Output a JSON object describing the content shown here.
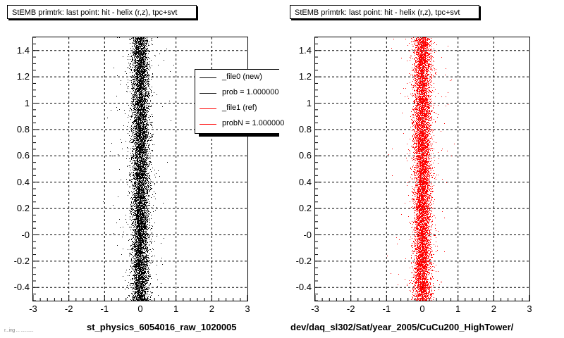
{
  "colors": {
    "background": "#ffffff",
    "series_new": "#000000",
    "series_ref": "#ff0000",
    "grid": "#000000"
  },
  "panels": [
    {
      "title": "StEMB primtrk: last point: hit - helix (r,z), tpc+svt",
      "xlabel": "st_physics_6054016_raw_1020005"
    },
    {
      "title": "StEMB primtrk: last point: hit - helix (r,z), tpc+svt",
      "xlabel": "dev/daq_sl302/Sat/year_2005/CuCu200_HighTower/"
    }
  ],
  "legend": {
    "entries": [
      {
        "label": "_file0 (new)",
        "color": "#000000"
      },
      {
        "label": "prob = 1.000000",
        "color": "#000000"
      },
      {
        "label": "_file1 (ref)",
        "color": "#ff0000"
      },
      {
        "label": "probN = 1.000000",
        "color": "#ff0000"
      }
    ]
  },
  "footer_text": "r...ing ... ...........",
  "chart_data": [
    {
      "type": "scatter",
      "title": "StEMB primtrk: last point: hit - helix (r,z), tpc+svt",
      "xlabel": "st_physics_6054016_raw_1020005",
      "ylabel": "",
      "xlim": [
        -3,
        3
      ],
      "ylim": [
        -0.5,
        1.5
      ],
      "xticks": [
        -3,
        -2,
        -1,
        0,
        1,
        2,
        3
      ],
      "ytick_values": [
        -0.4,
        -0.2,
        0,
        0.2,
        0.4,
        0.6,
        0.8,
        1,
        1.2,
        1.4
      ],
      "ytick_labels": [
        "-0.4",
        "-0.2",
        "-0",
        "0.2",
        "0.4",
        "0.6",
        "0.8",
        "1",
        "1.2",
        "1.4"
      ],
      "grid": true,
      "legend_position": "top-right",
      "series": [
        {
          "name": "_file0 (new)",
          "color": "#000000",
          "center_x": 0.0,
          "x_spread": 0.12,
          "point_count": 9000
        }
      ]
    },
    {
      "type": "scatter",
      "title": "StEMB primtrk: last point: hit - helix (r,z), tpc+svt",
      "xlabel": "dev/daq_sl302/Sat/year_2005/CuCu200_HighTower/",
      "ylabel": "",
      "xlim": [
        -3,
        3
      ],
      "ylim": [
        -0.5,
        1.5
      ],
      "xticks": [
        -3,
        -2,
        -1,
        0,
        1,
        2,
        3
      ],
      "ytick_values": [
        -0.4,
        -0.2,
        0,
        0.2,
        0.4,
        0.6,
        0.8,
        1,
        1.2,
        1.4
      ],
      "ytick_labels": [
        "-0.4",
        "-0.2",
        "-0",
        "0.2",
        "0.4",
        "0.6",
        "0.8",
        "1",
        "1.2",
        "1.4"
      ],
      "grid": true,
      "legend_position": "",
      "series": [
        {
          "name": "_file1 (ref)",
          "color": "#ff0000",
          "center_x": 0.0,
          "x_spread": 0.12,
          "point_count": 9000
        }
      ]
    }
  ]
}
